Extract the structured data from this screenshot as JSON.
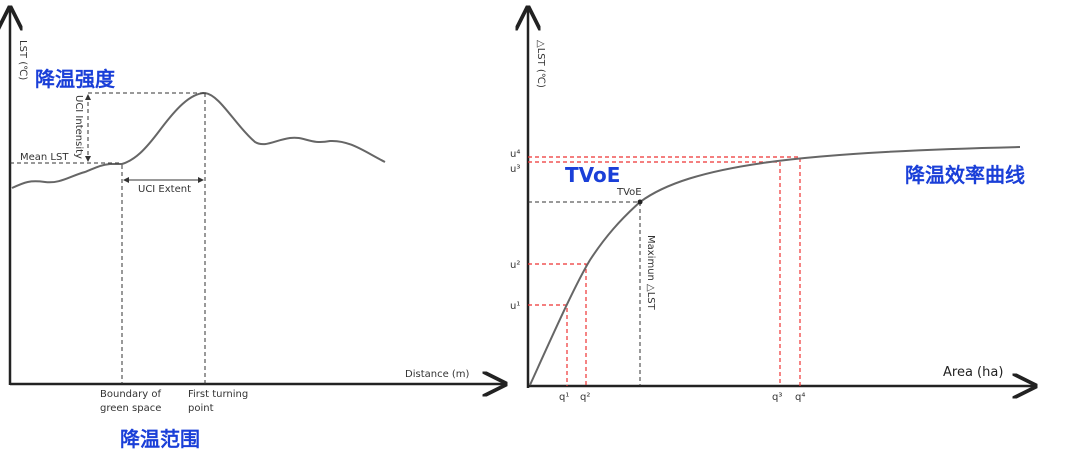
{
  "left_panel": {
    "y_axis_label": "LST (℃)",
    "intensity_cn": "降温强度",
    "intensity_label": "UCI Intensity",
    "mean_label": "Mean LST",
    "extent_label": "UCI Extent",
    "x_axis_label": "Distance (m)",
    "boundary_label": [
      "Boundary of",
      "green space"
    ],
    "turning_label": [
      "First turning",
      "point"
    ],
    "extent_cn": "降温范围"
  },
  "right_panel": {
    "y_axis_label": "△LST (℃)",
    "u_labels": [
      "u¹",
      "u²",
      "u³",
      "u⁴"
    ],
    "q_labels": [
      "q¹",
      "q²",
      "q³",
      "q⁴"
    ],
    "tvoe_big": "TVoE",
    "tvoe_small": "TVoE",
    "curve_cn": "降温效率曲线",
    "max_label": "Maximun △LST",
    "x_axis_label": "Area (ha)"
  }
}
